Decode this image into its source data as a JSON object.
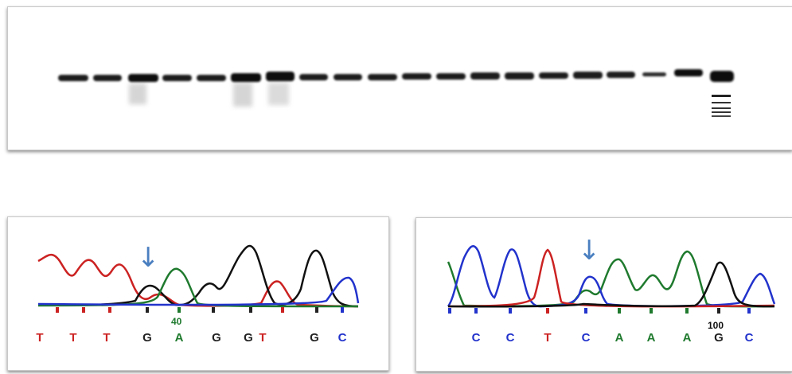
{
  "gel": {
    "lane_count": 20
  },
  "chromatogram_left": {
    "position_label": "40",
    "bases": [
      "T",
      "T",
      "T",
      "G",
      "A",
      "G",
      "G",
      "T",
      "G",
      "C"
    ],
    "base_colors": [
      "#cc2222",
      "#cc2222",
      "#cc2222",
      "#222222",
      "#1f7a2e",
      "#222222",
      "#222222",
      "#cc2222",
      "#222222",
      "#2233cc"
    ],
    "arrow": "↓"
  },
  "chromatogram_right": {
    "position_label": "100",
    "bases": [
      "C",
      "C",
      "T",
      "C",
      "A",
      "A",
      "A",
      "G",
      "C"
    ],
    "base_colors": [
      "#2233cc",
      "#2233cc",
      "#cc2222",
      "#2233cc",
      "#1f7a2e",
      "#1f7a2e",
      "#1f7a2e",
      "#222222",
      "#2233cc"
    ],
    "arrow": "↓"
  },
  "colors": {
    "A": "#1f7a2e",
    "C": "#2233cc",
    "G": "#111111",
    "T": "#cc2222",
    "arrow": "#4a7fc0"
  }
}
